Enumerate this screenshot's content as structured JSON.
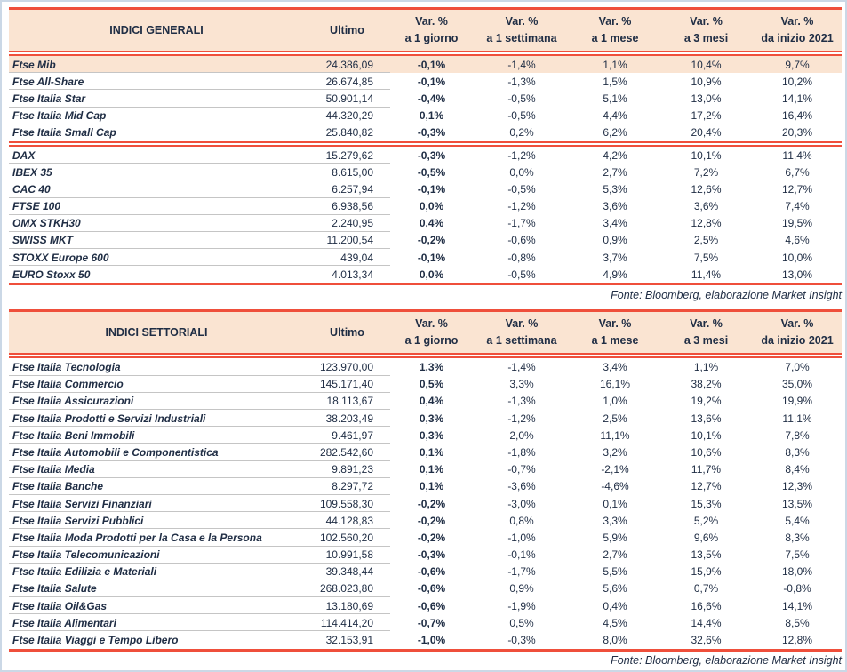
{
  "colors": {
    "accent_red": "#EF4F3B",
    "header_peach": "#FAE4D2",
    "highlight_row_peach": "#FAE4D2",
    "text_navy": "#202E45",
    "row_separator_gray": "#C5C5C5",
    "outer_frame_blue": "#CBD8E6"
  },
  "tables": [
    {
      "title": "INDICI GENERALI",
      "ultimo_label": "Ultimo",
      "var_label": "Var. %",
      "periods": [
        "a 1 giorno",
        "a 1 settimana",
        "a 1 mese",
        "a 3 mesi",
        "da inizio 2021"
      ],
      "fonte": "Fonte: Bloomberg, elaborazione Market Insight",
      "rows": [
        {
          "name": "Ftse Mib",
          "ultimo": "24.386,09",
          "d1": "-0,1%",
          "w1": "-1,4%",
          "m1": "1,1%",
          "m3": "10,4%",
          "ytd": "9,7%",
          "highlight": true
        },
        {
          "name": "Ftse All-Share",
          "ultimo": "26.674,85",
          "d1": "-0,1%",
          "w1": "-1,3%",
          "m1": "1,5%",
          "m3": "10,9%",
          "ytd": "10,2%"
        },
        {
          "name": "Ftse Italia Star",
          "ultimo": "50.901,14",
          "d1": "-0,4%",
          "w1": "-0,5%",
          "m1": "5,1%",
          "m3": "13,0%",
          "ytd": "14,1%"
        },
        {
          "name": "Ftse Italia Mid Cap",
          "ultimo": "44.320,29",
          "d1": "0,1%",
          "w1": "-0,5%",
          "m1": "4,4%",
          "m3": "17,2%",
          "ytd": "16,4%"
        },
        {
          "name": "Ftse Italia Small Cap",
          "ultimo": "25.840,82",
          "d1": "-0,3%",
          "w1": "0,2%",
          "m1": "6,2%",
          "m3": "20,4%",
          "ytd": "20,3%",
          "divider_after": true
        },
        {
          "name": "DAX",
          "ultimo": "15.279,62",
          "d1": "-0,3%",
          "w1": "-1,2%",
          "m1": "4,2%",
          "m3": "10,1%",
          "ytd": "11,4%"
        },
        {
          "name": "IBEX 35",
          "ultimo": "8.615,00",
          "d1": "-0,5%",
          "w1": "0,0%",
          "m1": "2,7%",
          "m3": "7,2%",
          "ytd": "6,7%"
        },
        {
          "name": "CAC 40",
          "ultimo": "6.257,94",
          "d1": "-0,1%",
          "w1": "-0,5%",
          "m1": "5,3%",
          "m3": "12,6%",
          "ytd": "12,7%"
        },
        {
          "name": "FTSE 100",
          "ultimo": "6.938,56",
          "d1": "0,0%",
          "w1": "-1,2%",
          "m1": "3,6%",
          "m3": "3,6%",
          "ytd": "7,4%"
        },
        {
          "name": "OMX STKH30",
          "ultimo": "2.240,95",
          "d1": "0,4%",
          "w1": "-1,7%",
          "m1": "3,4%",
          "m3": "12,8%",
          "ytd": "19,5%"
        },
        {
          "name": "SWISS MKT",
          "ultimo": "11.200,54",
          "d1": "-0,2%",
          "w1": "-0,6%",
          "m1": "0,9%",
          "m3": "2,5%",
          "ytd": "4,6%"
        },
        {
          "name": "STOXX Europe 600",
          "ultimo": "439,04",
          "d1": "-0,1%",
          "w1": "-0,8%",
          "m1": "3,7%",
          "m3": "7,5%",
          "ytd": "10,0%"
        },
        {
          "name": "EURO Stoxx 50",
          "ultimo": "4.013,34",
          "d1": "0,0%",
          "w1": "-0,5%",
          "m1": "4,9%",
          "m3": "11,4%",
          "ytd": "13,0%"
        }
      ]
    },
    {
      "title": "INDICI SETTORIALI",
      "ultimo_label": "Ultimo",
      "var_label": "Var. %",
      "periods": [
        "a 1 giorno",
        "a 1 settimana",
        "a 1 mese",
        "a 3 mesi",
        "da inizio 2021"
      ],
      "fonte": "Fonte: Bloomberg, elaborazione Market Insight",
      "rows": [
        {
          "name": "Ftse Italia Tecnologia",
          "ultimo": "123.970,00",
          "d1": "1,3%",
          "w1": "-1,4%",
          "m1": "3,4%",
          "m3": "1,1%",
          "ytd": "7,0%"
        },
        {
          "name": "Ftse Italia Commercio",
          "ultimo": "145.171,40",
          "d1": "0,5%",
          "w1": "3,3%",
          "m1": "16,1%",
          "m3": "38,2%",
          "ytd": "35,0%"
        },
        {
          "name": "Ftse Italia Assicurazioni",
          "ultimo": "18.113,67",
          "d1": "0,4%",
          "w1": "-1,3%",
          "m1": "1,0%",
          "m3": "19,2%",
          "ytd": "19,9%"
        },
        {
          "name": "Ftse Italia Prodotti e Servizi Industriali",
          "ultimo": "38.203,49",
          "d1": "0,3%",
          "w1": "-1,2%",
          "m1": "2,5%",
          "m3": "13,6%",
          "ytd": "11,1%"
        },
        {
          "name": "Ftse Italia Beni Immobili",
          "ultimo": "9.461,97",
          "d1": "0,3%",
          "w1": "2,0%",
          "m1": "11,1%",
          "m3": "10,1%",
          "ytd": "7,8%"
        },
        {
          "name": "Ftse Italia Automobili e Componentistica",
          "ultimo": "282.542,60",
          "d1": "0,1%",
          "w1": "-1,8%",
          "m1": "3,2%",
          "m3": "10,6%",
          "ytd": "8,3%"
        },
        {
          "name": "Ftse Italia Media",
          "ultimo": "9.891,23",
          "d1": "0,1%",
          "w1": "-0,7%",
          "m1": "-2,1%",
          "m3": "11,7%",
          "ytd": "8,4%"
        },
        {
          "name": "Ftse Italia Banche",
          "ultimo": "8.297,72",
          "d1": "0,1%",
          "w1": "-3,6%",
          "m1": "-4,6%",
          "m3": "12,7%",
          "ytd": "12,3%"
        },
        {
          "name": "Ftse Italia Servizi Finanziari",
          "ultimo": "109.558,30",
          "d1": "-0,2%",
          "w1": "-3,0%",
          "m1": "0,1%",
          "m3": "15,3%",
          "ytd": "13,5%"
        },
        {
          "name": "Ftse Italia Servizi Pubblici",
          "ultimo": "44.128,83",
          "d1": "-0,2%",
          "w1": "0,8%",
          "m1": "3,3%",
          "m3": "5,2%",
          "ytd": "5,4%"
        },
        {
          "name": "Ftse Italia Moda Prodotti per la Casa e la Persona",
          "ultimo": "102.560,20",
          "d1": "-0,2%",
          "w1": "-1,0%",
          "m1": "5,9%",
          "m3": "9,6%",
          "ytd": "8,3%"
        },
        {
          "name": "Ftse Italia Telecomunicazioni",
          "ultimo": "10.991,58",
          "d1": "-0,3%",
          "w1": "-0,1%",
          "m1": "2,7%",
          "m3": "13,5%",
          "ytd": "7,5%"
        },
        {
          "name": "Ftse Italia Edilizia e Materiali",
          "ultimo": "39.348,44",
          "d1": "-0,6%",
          "w1": "-1,7%",
          "m1": "5,5%",
          "m3": "15,9%",
          "ytd": "18,0%"
        },
        {
          "name": "Ftse Italia Salute",
          "ultimo": "268.023,80",
          "d1": "-0,6%",
          "w1": "0,9%",
          "m1": "5,6%",
          "m3": "0,7%",
          "ytd": "-0,8%"
        },
        {
          "name": "Ftse Italia Oil&Gas",
          "ultimo": "13.180,69",
          "d1": "-0,6%",
          "w1": "-1,9%",
          "m1": "0,4%",
          "m3": "16,6%",
          "ytd": "14,1%"
        },
        {
          "name": "Ftse Italia Alimentari",
          "ultimo": "114.414,20",
          "d1": "-0,7%",
          "w1": "0,5%",
          "m1": "4,5%",
          "m3": "14,4%",
          "ytd": "8,5%"
        },
        {
          "name": "Ftse Italia Viaggi e Tempo Libero",
          "ultimo": "32.153,91",
          "d1": "-1,0%",
          "w1": "-0,3%",
          "m1": "8,0%",
          "m3": "32,6%",
          "ytd": "12,8%"
        }
      ]
    }
  ]
}
